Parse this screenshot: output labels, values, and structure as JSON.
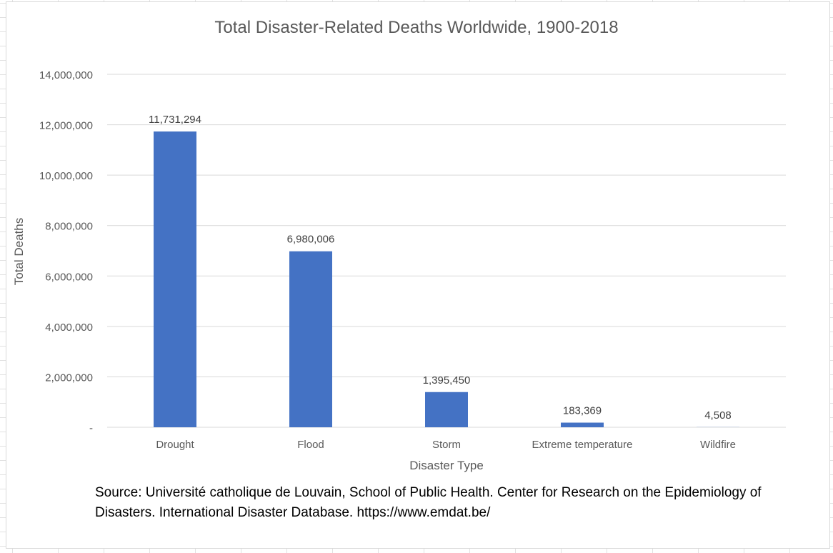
{
  "chart_data": {
    "type": "bar",
    "title": "Total Disaster-Related Deaths Worldwide, 1900-2018",
    "xlabel": "Disaster Type",
    "ylabel": "Total Deaths",
    "categories": [
      "Drought",
      "Flood",
      "Storm",
      "Extreme temperature",
      "Wildfire"
    ],
    "values": [
      11731294,
      6980006,
      1395450,
      183369,
      4508
    ],
    "data_labels": [
      "11,731,294",
      "6,980,006",
      "1,395,450",
      "183,369",
      "4,508"
    ],
    "ylim": [
      0,
      14000000
    ],
    "yticks": [
      0,
      2000000,
      4000000,
      6000000,
      8000000,
      10000000,
      12000000,
      14000000
    ],
    "ytick_labels": [
      "-",
      "2,000,000",
      "4,000,000",
      "6,000,000",
      "8,000,000",
      "10,000,000",
      "12,000,000",
      "14,000,000"
    ],
    "grid": true,
    "legend": "none",
    "bar_color": "#4472c4"
  },
  "source_note": "Source: Université catholique de Louvain, School of Public Health. Center for Research on the Epidemiology of Disasters. International Disaster Database. https://www.emdat.be/"
}
